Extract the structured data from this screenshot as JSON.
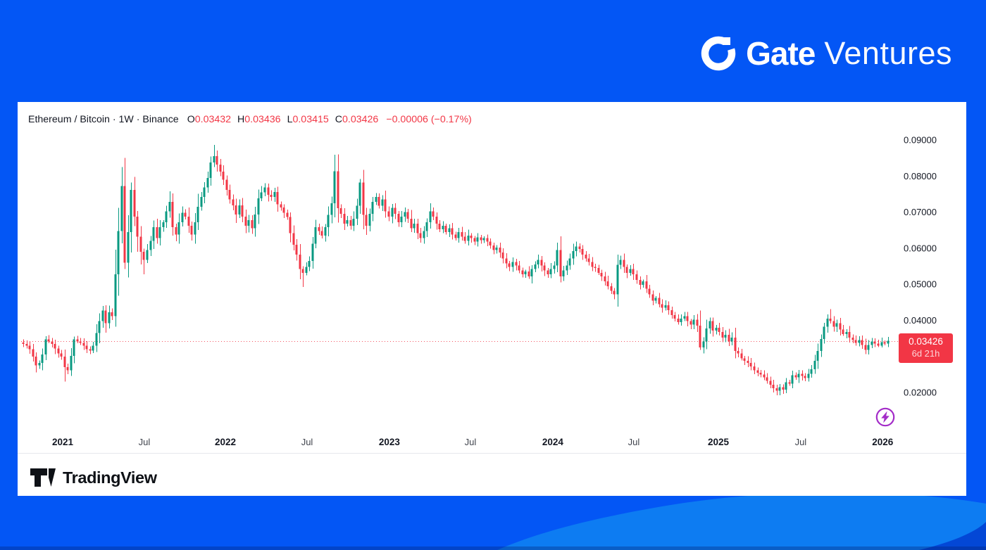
{
  "brand": {
    "gate": "Gate",
    "ventures": "Ventures"
  },
  "header": {
    "title": "Ethereum / Bitcoin · 1W · Binance",
    "ohlc": [
      {
        "k": "O",
        "v": "0.03432"
      },
      {
        "k": "H",
        "v": "0.03436"
      },
      {
        "k": "L",
        "v": "0.03415"
      },
      {
        "k": "C",
        "v": "0.03426"
      }
    ],
    "change": "−0.00006 (−0.17%)"
  },
  "attribution": {
    "text": "TradingView"
  },
  "colors": {
    "background": "#0356f5",
    "wave_light": "#0d7cf2",
    "wave_dark": "#0347d6",
    "card": "#ffffff",
    "text_dark": "#131722",
    "red": "#f23645",
    "green": "#089981",
    "purple": "#a32cc8"
  },
  "chart_data": {
    "type": "candlestick",
    "symbol": "Ethereum / Bitcoin",
    "timeframe": "1W",
    "exchange": "Binance",
    "current_bar": {
      "open": 0.03432,
      "high": 0.03436,
      "low": 0.03415,
      "close": 0.03426,
      "change": -6e-05,
      "change_pct": -0.17
    },
    "price_line": 0.03426,
    "up_color": "#089981",
    "down_color": "#f23645",
    "weeks": 273,
    "y_axis": {
      "min": 0.0165,
      "max": 0.0915,
      "grid": false
    },
    "price_scale": {
      "ticks": [
        {
          "label": "0.09000",
          "value": 0.09
        },
        {
          "label": "0.08000",
          "value": 0.08
        },
        {
          "label": "0.07000",
          "value": 0.07
        },
        {
          "label": "0.06000",
          "value": 0.06
        },
        {
          "label": "0.05000",
          "value": 0.05
        },
        {
          "label": "0.04000",
          "value": 0.04
        },
        {
          "label": "0.02000",
          "value": 0.02
        }
      ],
      "badge": {
        "price": "0.03426",
        "countdown": "6d 21h"
      }
    },
    "time_scale": {
      "ticks": [
        {
          "label": "2021",
          "week": 12.4,
          "bold": true
        },
        {
          "label": "Jul",
          "week": 38.1,
          "bold": false
        },
        {
          "label": "2022",
          "week": 63.6,
          "bold": true
        },
        {
          "label": "Jul",
          "week": 89.3,
          "bold": false
        },
        {
          "label": "2023",
          "week": 115.2,
          "bold": true
        },
        {
          "label": "Jul",
          "week": 140.7,
          "bold": false
        },
        {
          "label": "2024",
          "week": 166.6,
          "bold": true
        },
        {
          "label": "Jul",
          "week": 192.1,
          "bold": false
        },
        {
          "label": "2025",
          "week": 218.7,
          "bold": true
        },
        {
          "label": "Jul",
          "week": 244.6,
          "bold": false
        },
        {
          "label": "2026",
          "week": 270.4,
          "bold": true
        }
      ]
    },
    "closes": [
      0.0335,
      0.033,
      0.032,
      0.03,
      0.0275,
      0.0282,
      0.0305,
      0.0347,
      0.0342,
      0.0335,
      0.0322,
      0.0308,
      0.03,
      0.027,
      0.0262,
      0.0302,
      0.0347,
      0.0342,
      0.0338,
      0.033,
      0.032,
      0.0316,
      0.033,
      0.0365,
      0.0398,
      0.0427,
      0.0392,
      0.0422,
      0.0412,
      0.0528,
      0.0648,
      0.0772,
      0.056,
      0.0645,
      0.0762,
      0.0688,
      0.0632,
      0.059,
      0.0568,
      0.0595,
      0.062,
      0.0658,
      0.0628,
      0.0658,
      0.0672,
      0.0702,
      0.0728,
      0.0658,
      0.0638,
      0.0672,
      0.0698,
      0.0688,
      0.0662,
      0.0638,
      0.0672,
      0.0715,
      0.0742,
      0.0768,
      0.0795,
      0.0838,
      0.0855,
      0.0832,
      0.0812,
      0.079,
      0.0762,
      0.0735,
      0.0719,
      0.0693,
      0.0719,
      0.0688,
      0.0662,
      0.0678,
      0.0655,
      0.0693,
      0.0738,
      0.0755,
      0.0768,
      0.0748,
      0.0742,
      0.0756,
      0.0722,
      0.0713,
      0.0698,
      0.0687,
      0.0642,
      0.061,
      0.0582,
      0.0542,
      0.0532,
      0.0548,
      0.0565,
      0.0612,
      0.0658,
      0.0648,
      0.0635,
      0.0658,
      0.0692,
      0.0725,
      0.0813,
      0.0711,
      0.0695,
      0.0668,
      0.0678,
      0.0662,
      0.0682,
      0.0718,
      0.0782,
      0.0692,
      0.0662,
      0.0695,
      0.0728,
      0.0742,
      0.0718,
      0.0735,
      0.0702,
      0.0688,
      0.0712,
      0.0695,
      0.0672,
      0.0688,
      0.07,
      0.0682,
      0.0655,
      0.0668,
      0.0642,
      0.0628,
      0.0648,
      0.0672,
      0.0702,
      0.0688,
      0.0668,
      0.0652,
      0.0662,
      0.0645,
      0.0655,
      0.0638,
      0.0628,
      0.0645,
      0.0632,
      0.062,
      0.0635,
      0.0628,
      0.0618,
      0.063,
      0.0622,
      0.0628,
      0.0618,
      0.0608,
      0.0595,
      0.0602,
      0.0588,
      0.0572,
      0.0558,
      0.0548,
      0.0562,
      0.0552,
      0.0538,
      0.0528,
      0.0535,
      0.0522,
      0.0542,
      0.0555,
      0.0568,
      0.0552,
      0.0538,
      0.0528,
      0.0542,
      0.0552,
      0.0595,
      0.0522,
      0.0538,
      0.0552,
      0.0572,
      0.0592,
      0.0605,
      0.0598,
      0.0582,
      0.0572,
      0.0562,
      0.0548,
      0.0545,
      0.0532,
      0.0522,
      0.0508,
      0.0495,
      0.0482,
      0.0472,
      0.0554,
      0.0568,
      0.0548,
      0.0532,
      0.0542,
      0.0528,
      0.0512,
      0.0498,
      0.0508,
      0.0488,
      0.0472,
      0.0455,
      0.0462,
      0.0445,
      0.0435,
      0.0442,
      0.0428,
      0.0415,
      0.0405,
      0.0395,
      0.0405,
      0.0412,
      0.0398,
      0.0388,
      0.0402,
      0.0385,
      0.0325,
      0.0342,
      0.0378,
      0.0398,
      0.0372,
      0.038,
      0.0368,
      0.0352,
      0.036,
      0.0342,
      0.0352,
      0.0315,
      0.0308,
      0.0295,
      0.0288,
      0.0282,
      0.0272,
      0.0262,
      0.0255,
      0.025,
      0.0242,
      0.0232,
      0.0222,
      0.0212,
      0.0205,
      0.0215,
      0.0208,
      0.0228,
      0.0225,
      0.0248,
      0.0242,
      0.0252,
      0.0246,
      0.024,
      0.0252,
      0.0265,
      0.0288,
      0.0315,
      0.0348,
      0.0382,
      0.0405,
      0.0398,
      0.0382,
      0.0392,
      0.0375,
      0.0362,
      0.0368,
      0.0352,
      0.0345,
      0.0338,
      0.0345,
      0.0332,
      0.0318,
      0.0332,
      0.0342,
      0.0336,
      0.033,
      0.034,
      0.0336,
      0.0343
    ],
    "wick_overrides": {
      "4": {
        "l": 0.0256
      },
      "7": {
        "h": 0.0356
      },
      "13": {
        "l": 0.023
      },
      "16": {
        "h": 0.0355
      },
      "25": {
        "h": 0.044
      },
      "31": {
        "h": 0.0825
      },
      "32": {
        "l": 0.0542
      },
      "34": {
        "h": 0.0782
      },
      "38": {
        "l": 0.0528
      },
      "46": {
        "h": 0.0758
      },
      "60": {
        "h": 0.0886
      },
      "75": {
        "h": 0.0772
      },
      "88": {
        "l": 0.0493
      },
      "98": {
        "h": 0.0859
      },
      "106": {
        "h": 0.0792
      },
      "168": {
        "h": 0.0615
      },
      "169": {
        "l": 0.0505
      },
      "187": {
        "h": 0.0582
      },
      "213": {
        "l": 0.0318
      },
      "216": {
        "h": 0.0408
      },
      "237": {
        "l": 0.0192
      },
      "240": {
        "l": 0.0198
      },
      "254": {
        "h": 0.0431
      },
      "265": {
        "l": 0.0306
      }
    }
  }
}
